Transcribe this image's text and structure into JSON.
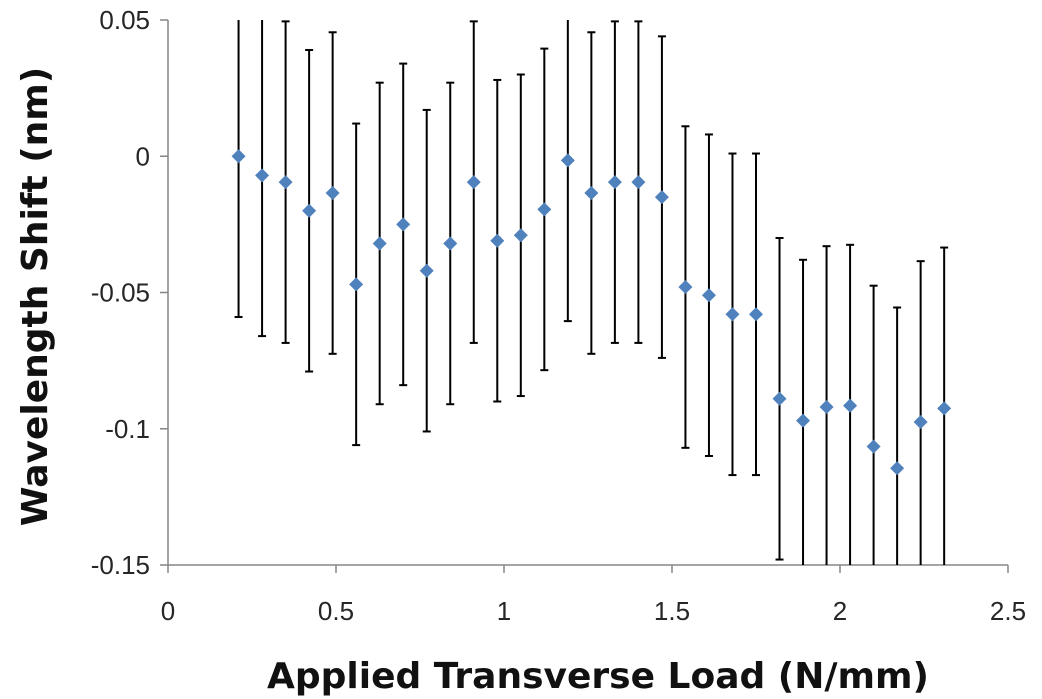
{
  "chart_data": {
    "type": "scatter",
    "title": "",
    "xlabel": "Applied Transverse Load (N/mm)",
    "ylabel": "Wavelength Shift (nm)",
    "xlim": [
      0,
      2.5
    ],
    "ylim": [
      -0.15,
      0.05
    ],
    "xticks": [
      0,
      0.5,
      1,
      1.5,
      2,
      2.5
    ],
    "xtick_labels": [
      "0",
      "0.5",
      "1",
      "1.5",
      "2",
      "2.5"
    ],
    "yticks": [
      0.05,
      0,
      -0.05,
      -0.1,
      -0.15
    ],
    "ytick_labels": [
      "0.05",
      "0",
      "-0.05",
      "-0.1",
      "-0.15"
    ],
    "grid": false,
    "error_bars": true,
    "marker": "diamond",
    "colors": {
      "marker": "#4f81bd",
      "error_bar": "#000000",
      "axis": "#868686"
    },
    "series": [
      {
        "points": [
          {
            "x": 0.21,
            "y": 0.0,
            "err": 0.059
          },
          {
            "x": 0.28,
            "y": -0.007,
            "err": 0.059
          },
          {
            "x": 0.35,
            "y": -0.0095,
            "err": 0.059
          },
          {
            "x": 0.42,
            "y": -0.02,
            "err": 0.059
          },
          {
            "x": 0.49,
            "y": -0.0135,
            "err": 0.059
          },
          {
            "x": 0.56,
            "y": -0.047,
            "err": 0.059
          },
          {
            "x": 0.63,
            "y": -0.032,
            "err": 0.059
          },
          {
            "x": 0.7,
            "y": -0.025,
            "err": 0.059
          },
          {
            "x": 0.77,
            "y": -0.042,
            "err": 0.059
          },
          {
            "x": 0.84,
            "y": -0.032,
            "err": 0.059
          },
          {
            "x": 0.91,
            "y": -0.0095,
            "err": 0.059
          },
          {
            "x": 0.98,
            "y": -0.031,
            "err": 0.059
          },
          {
            "x": 1.05,
            "y": -0.029,
            "err": 0.059
          },
          {
            "x": 1.12,
            "y": -0.0195,
            "err": 0.059
          },
          {
            "x": 1.19,
            "y": -0.0015,
            "err": 0.059
          },
          {
            "x": 1.26,
            "y": -0.0135,
            "err": 0.059
          },
          {
            "x": 1.33,
            "y": -0.0095,
            "err": 0.059
          },
          {
            "x": 1.4,
            "y": -0.0095,
            "err": 0.059
          },
          {
            "x": 1.47,
            "y": -0.015,
            "err": 0.059
          },
          {
            "x": 1.54,
            "y": -0.048,
            "err": 0.059
          },
          {
            "x": 1.61,
            "y": -0.051,
            "err": 0.059
          },
          {
            "x": 1.68,
            "y": -0.058,
            "err": 0.059
          },
          {
            "x": 1.75,
            "y": -0.058,
            "err": 0.059
          },
          {
            "x": 1.82,
            "y": -0.089,
            "err": 0.059
          },
          {
            "x": 1.89,
            "y": -0.097,
            "err": 0.059
          },
          {
            "x": 1.96,
            "y": -0.092,
            "err": 0.059
          },
          {
            "x": 2.03,
            "y": -0.0915,
            "err": 0.059
          },
          {
            "x": 2.1,
            "y": -0.1065,
            "err": 0.059
          },
          {
            "x": 2.17,
            "y": -0.1145,
            "err": 0.059
          },
          {
            "x": 2.24,
            "y": -0.0975,
            "err": 0.059
          },
          {
            "x": 2.31,
            "y": -0.0925,
            "err": 0.059
          }
        ]
      }
    ]
  }
}
